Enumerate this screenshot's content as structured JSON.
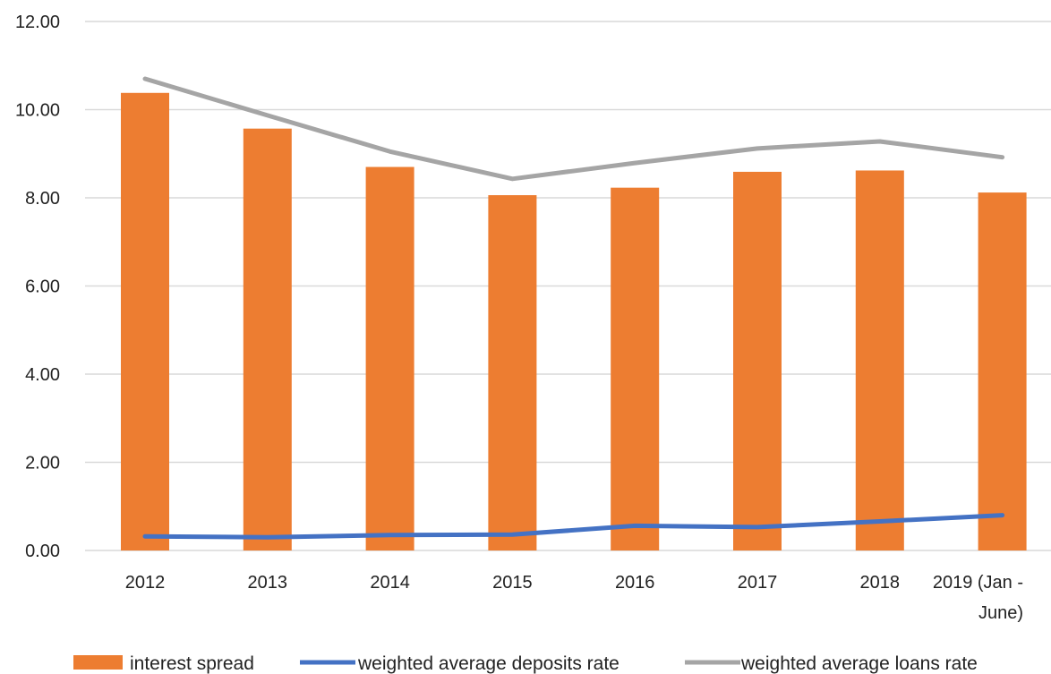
{
  "chart_data": {
    "type": "bar",
    "categories": [
      [
        "2012"
      ],
      [
        "2013"
      ],
      [
        "2014"
      ],
      [
        "2015"
      ],
      [
        "2016"
      ],
      [
        "2017"
      ],
      [
        "2018"
      ],
      [
        "2019 (Jan -",
        "June)"
      ]
    ],
    "series": [
      {
        "name": "interest spread",
        "kind": "bar",
        "color": "#ED7D31",
        "values": [
          10.38,
          9.57,
          8.7,
          8.06,
          8.23,
          8.59,
          8.62,
          8.12
        ]
      },
      {
        "name": "weighted average deposits rate",
        "kind": "line",
        "color": "#4472C4",
        "values": [
          0.32,
          0.3,
          0.35,
          0.36,
          0.56,
          0.53,
          0.66,
          0.8
        ]
      },
      {
        "name": "weighted average loans rate",
        "kind": "line",
        "color": "#A5A5A5",
        "values": [
          10.7,
          9.87,
          9.05,
          8.43,
          8.79,
          9.12,
          9.28,
          8.92
        ]
      }
    ],
    "ylim": [
      0,
      12
    ],
    "yticks": [
      "0.00",
      "2.00",
      "4.00",
      "6.00",
      "8.00",
      "10.00",
      "12.00"
    ],
    "grid": true,
    "legend_position": "bottom",
    "title": "",
    "xlabel": "",
    "ylabel": ""
  }
}
